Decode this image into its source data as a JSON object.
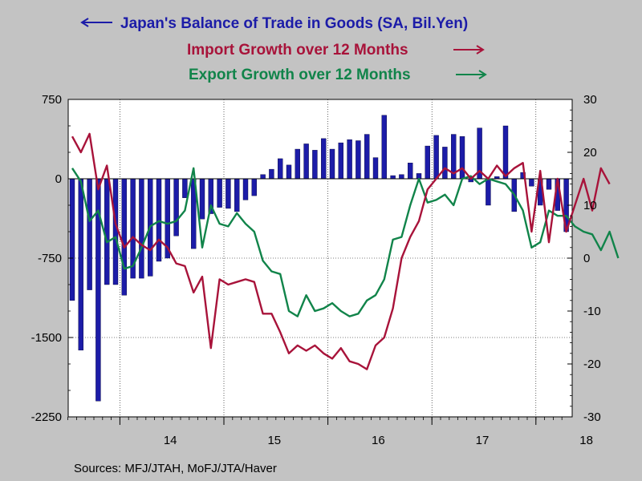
{
  "chart_data": {
    "type": "bar+line",
    "legend": [
      {
        "label": "Japan's Balance of Trade in Goods (SA, Bil.Yen)",
        "arrow": "left",
        "color": "#1c1ca8"
      },
      {
        "label": "Import Growth over 12 Months",
        "arrow": "right",
        "color": "#a8133a"
      },
      {
        "label": "Export Growth over 12 Months",
        "arrow": "right",
        "color": "#11844a"
      }
    ],
    "x_tick_labels": [
      "14",
      "15",
      "16",
      "17",
      "18"
    ],
    "left_axis": {
      "ylim": [
        -2250,
        750
      ],
      "ticks": [
        "750",
        "0",
        "-750",
        "-1500",
        "-2250"
      ]
    },
    "right_axis": {
      "ylim": [
        -30,
        30
      ],
      "ticks": [
        "30",
        "20",
        "10",
        "0",
        "-10",
        "-20",
        "-30"
      ]
    },
    "months_start": "2013-07",
    "series": [
      {
        "name": "Japan's Balance of Trade in Goods (SA, Bil.Yen)",
        "type": "bar",
        "axis": "left",
        "color": "#1c1ca8",
        "values": [
          -1150,
          -1620,
          -1050,
          -2100,
          -1000,
          -1000,
          -1100,
          -940,
          -940,
          -920,
          -780,
          -750,
          -540,
          -180,
          -660,
          -380,
          -330,
          -270,
          -280,
          -310,
          -200,
          -160,
          40,
          90,
          190,
          130,
          280,
          330,
          270,
          380,
          280,
          340,
          370,
          360,
          420,
          200,
          600,
          30,
          40,
          150,
          50,
          310,
          410,
          300,
          420,
          400,
          -30,
          480,
          -250,
          20,
          500,
          -310,
          60,
          -70,
          -250,
          -100,
          -300,
          -500
        ]
      },
      {
        "name": "Import Growth over 12 Months",
        "type": "line",
        "axis": "right",
        "color": "#a8133a",
        "values": [
          23,
          20,
          23.5,
          13,
          17.5,
          6.5,
          2,
          4,
          2.5,
          1.5,
          3.5,
          2,
          -1,
          -1.5,
          -6.5,
          -3.5,
          -17,
          -4,
          -5,
          -4.5,
          -4,
          -4.5,
          -10.5,
          -10.5,
          -14,
          -18,
          -16.5,
          -17.5,
          -16.5,
          -18,
          -19,
          -17,
          -19.5,
          -20,
          -21,
          -16.5,
          -15,
          -9.5,
          0,
          4,
          7,
          13,
          15,
          17,
          16,
          17,
          15,
          16.5,
          15,
          17.5,
          15.5,
          17,
          18,
          5,
          16.5,
          3,
          15,
          5,
          10,
          15,
          9,
          17,
          14
        ]
      },
      {
        "name": "Export Growth over 12 Months",
        "type": "line",
        "axis": "right",
        "color": "#11844a",
        "values": [
          17,
          14.5,
          7,
          9,
          3,
          4,
          -2,
          -1.5,
          2,
          6,
          7,
          6.5,
          7,
          9,
          17,
          2,
          10,
          6.5,
          6,
          8.5,
          6.5,
          5,
          -0.5,
          -2.5,
          -3,
          -10,
          -11,
          -7,
          -10,
          -9.5,
          -8.5,
          -10,
          -11,
          -10.5,
          -8,
          -7,
          -4,
          3.5,
          4,
          10,
          15,
          10.5,
          11,
          12,
          10,
          15,
          15.5,
          14,
          15,
          14.5,
          14,
          12,
          9,
          2,
          3,
          9,
          8,
          8,
          6,
          5,
          4.5,
          1.5,
          5,
          0
        ]
      }
    ]
  },
  "source_text": "Sources:  MFJ/JTAH, MoFJ/JTA/Haver"
}
